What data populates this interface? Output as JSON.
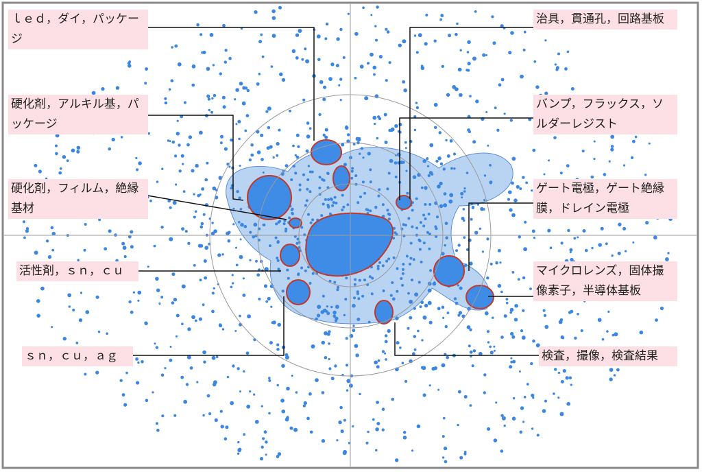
{
  "labels": [
    "ｌｅｄ，ダイ，パッケージ",
    "硬化剤，アルキル基，パッケージ",
    "硬化剤，フィルム，絶縁基材",
    "活性剤，ｓｎ，ｃｕ",
    "ｓｎ，ｃｕ，ａｇ",
    "治具，貫通孔，回路基板",
    "バンプ，フラックス，ソルダーレジスト",
    "ゲート電極，ゲート絶縁膜，ドレイン電極",
    "マイクロレンズ，固体撮像素子，半導体基板",
    "検査，撮像，検査結果"
  ]
}
